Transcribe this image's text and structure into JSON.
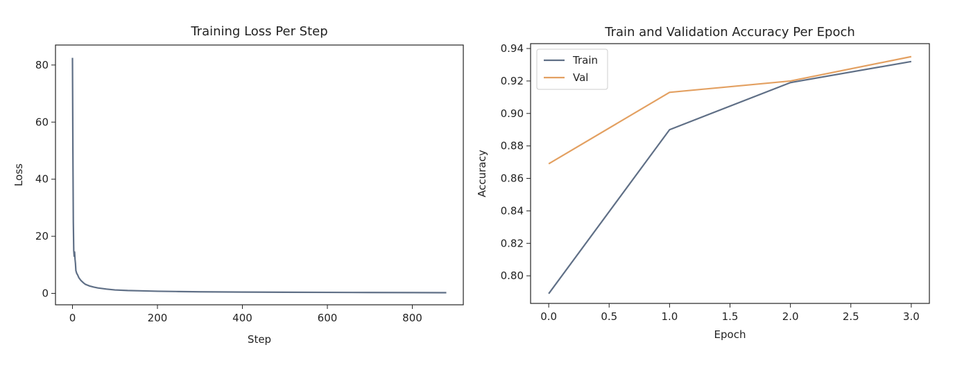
{
  "colors": {
    "train": "#5f6f86",
    "val": "#e3a061",
    "axis": "#222222"
  },
  "chart_data": [
    {
      "type": "line",
      "title": "Training Loss Per Step",
      "xlabel": "Step",
      "ylabel": "Loss",
      "xlim": [
        -40,
        920
      ],
      "ylim": [
        -4,
        87
      ],
      "xticks": [
        0,
        200,
        400,
        600,
        800
      ],
      "yticks": [
        0,
        20,
        40,
        60,
        80
      ],
      "tick_labels_x": [
        "0",
        "200",
        "400",
        "600",
        "800"
      ],
      "tick_labels_y": [
        "0",
        "20",
        "40",
        "60",
        "80"
      ],
      "grid": false,
      "series": [
        {
          "x": [
            0,
            1,
            2,
            3,
            4,
            5,
            6,
            7,
            8,
            9,
            10,
            12,
            15,
            20,
            25,
            30,
            40,
            50,
            60,
            80,
            100,
            130,
            160,
            200,
            250,
            300,
            400,
            500,
            600,
            700,
            800,
            880
          ],
          "y": [
            82.5,
            50,
            25,
            15,
            13,
            14.5,
            12,
            10.5,
            8,
            7.5,
            7,
            6.5,
            5.5,
            4.5,
            3.8,
            3.2,
            2.6,
            2.2,
            1.9,
            1.5,
            1.2,
            1.0,
            0.9,
            0.75,
            0.65,
            0.55,
            0.45,
            0.4,
            0.35,
            0.3,
            0.28,
            0.25
          ]
        }
      ]
    },
    {
      "type": "line",
      "title": "Train and Validation Accuracy Per Epoch",
      "xlabel": "Epoch",
      "ylabel": "Accuracy",
      "xlim": [
        -0.15,
        3.15
      ],
      "ylim": [
        0.783,
        0.943
      ],
      "xticks": [
        0.0,
        0.5,
        1.0,
        1.5,
        2.0,
        2.5,
        3.0
      ],
      "yticks": [
        0.8,
        0.82,
        0.84,
        0.86,
        0.88,
        0.9,
        0.92,
        0.94
      ],
      "tick_labels_x": [
        "0.0",
        "0.5",
        "1.0",
        "1.5",
        "2.0",
        "2.5",
        "3.0"
      ],
      "tick_labels_y": [
        "0.80",
        "0.82",
        "0.84",
        "0.86",
        "0.88",
        "0.90",
        "0.92",
        "0.94"
      ],
      "grid": false,
      "legend_position": "top-left",
      "series": [
        {
          "name": "Train",
          "x": [
            0,
            1,
            2,
            3
          ],
          "y": [
            0.789,
            0.89,
            0.919,
            0.932
          ]
        },
        {
          "name": "Val",
          "x": [
            0,
            1,
            2,
            3
          ],
          "y": [
            0.869,
            0.913,
            0.92,
            0.935
          ]
        }
      ]
    }
  ]
}
